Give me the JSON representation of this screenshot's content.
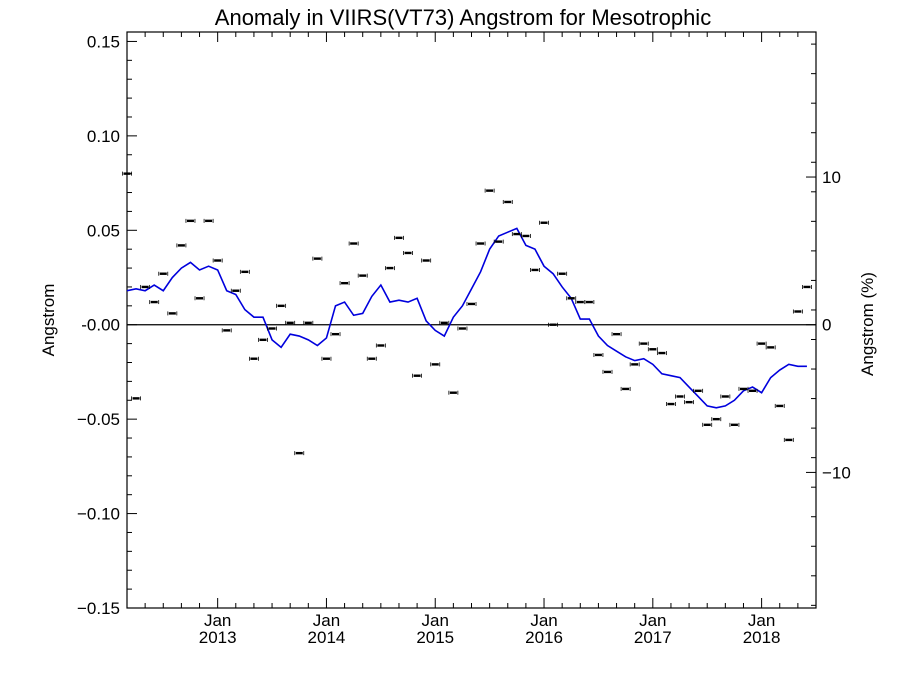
{
  "chart_data": {
    "type": "scatter",
    "title": "Anomaly in VIIRS(VT73) Angstrom for Mesotrophic",
    "xlabel": "",
    "ylabel": "Angstrom",
    "ylabel_right": "Angstrom (%)",
    "ylim": [
      -0.15,
      0.155
    ],
    "ylim_right_percent": [
      -19.18,
      19.82
    ],
    "xlim_months": [
      "2012-03",
      "2018-07"
    ],
    "grid": false,
    "legend": "none",
    "y_ticks": [
      {
        "value": 0.15,
        "label": "0.15"
      },
      {
        "value": 0.1,
        "label": "0.10"
      },
      {
        "value": 0.05,
        "label": "0.05"
      },
      {
        "value": 0.0,
        "label": "-0.00"
      },
      {
        "value": -0.05,
        "label": "−0.05"
      },
      {
        "value": -0.1,
        "label": "−0.10"
      },
      {
        "value": -0.15,
        "label": "−0.15"
      }
    ],
    "y_right_ticks": [
      {
        "value": 10,
        "label": "10"
      },
      {
        "value": 0,
        "label": "0"
      },
      {
        "value": -10,
        "label": "−10"
      }
    ],
    "x_ticks": [
      {
        "date": "2013-01",
        "line1": "Jan",
        "line2": "2013"
      },
      {
        "date": "2014-01",
        "line1": "Jan",
        "line2": "2014"
      },
      {
        "date": "2015-01",
        "line1": "Jan",
        "line2": "2015"
      },
      {
        "date": "2016-01",
        "line1": "Jan",
        "line2": "2016"
      },
      {
        "date": "2017-01",
        "line1": "Jan",
        "line2": "2017"
      },
      {
        "date": "2018-01",
        "line1": "Jan",
        "line2": "2018"
      }
    ],
    "monthly_points": {
      "start": "2012-03",
      "values": [
        0.08,
        -0.039,
        0.02,
        0.012,
        0.027,
        0.006,
        0.042,
        0.055,
        0.014,
        0.055,
        0.034,
        -0.003,
        0.018,
        0.028,
        -0.018,
        -0.008,
        -0.002,
        0.01,
        0.001,
        -0.068,
        0.001,
        0.035,
        -0.018,
        -0.005,
        0.022,
        0.043,
        0.026,
        -0.018,
        -0.011,
        0.03,
        0.046,
        0.038,
        -0.027,
        0.034,
        -0.021,
        0.001,
        -0.036,
        -0.002,
        0.011,
        0.043,
        0.071,
        0.044,
        0.065,
        0.048,
        0.047,
        0.029,
        0.054,
        0.0,
        0.027,
        0.014,
        0.012,
        0.012,
        -0.016,
        -0.025,
        -0.005,
        -0.034,
        -0.021,
        -0.01,
        -0.013,
        -0.015,
        -0.042,
        -0.038,
        -0.041,
        -0.035,
        -0.053,
        -0.05,
        -0.038,
        -0.053,
        -0.034,
        -0.035,
        -0.01,
        -0.012,
        -0.043,
        -0.061,
        0.007,
        0.02
      ]
    },
    "series": [
      {
        "start": "2012-03",
        "color": "#0000dd",
        "values": [
          0.018,
          0.019,
          0.018,
          0.021,
          0.018,
          0.025,
          0.03,
          0.033,
          0.029,
          0.031,
          0.029,
          0.018,
          0.016,
          0.008,
          0.004,
          0.004,
          -0.008,
          -0.012,
          -0.005,
          -0.006,
          -0.008,
          -0.011,
          -0.007,
          0.01,
          0.012,
          0.005,
          0.006,
          0.015,
          0.021,
          0.012,
          0.013,
          0.012,
          0.014,
          0.002,
          -0.003,
          -0.006,
          0.004,
          0.01,
          0.019,
          0.028,
          0.04,
          0.047,
          0.049,
          0.051,
          0.042,
          0.04,
          0.031,
          0.027,
          0.02,
          0.014,
          0.003,
          0.003,
          -0.006,
          -0.011,
          -0.014,
          -0.017,
          -0.019,
          -0.018,
          -0.021,
          -0.026,
          -0.027,
          -0.028,
          -0.033,
          -0.038,
          -0.043,
          -0.044,
          -0.043,
          -0.04,
          -0.035,
          -0.033,
          -0.036,
          -0.028,
          -0.024,
          -0.021,
          -0.022,
          -0.022
        ]
      }
    ],
    "zero_line": 0.0
  }
}
